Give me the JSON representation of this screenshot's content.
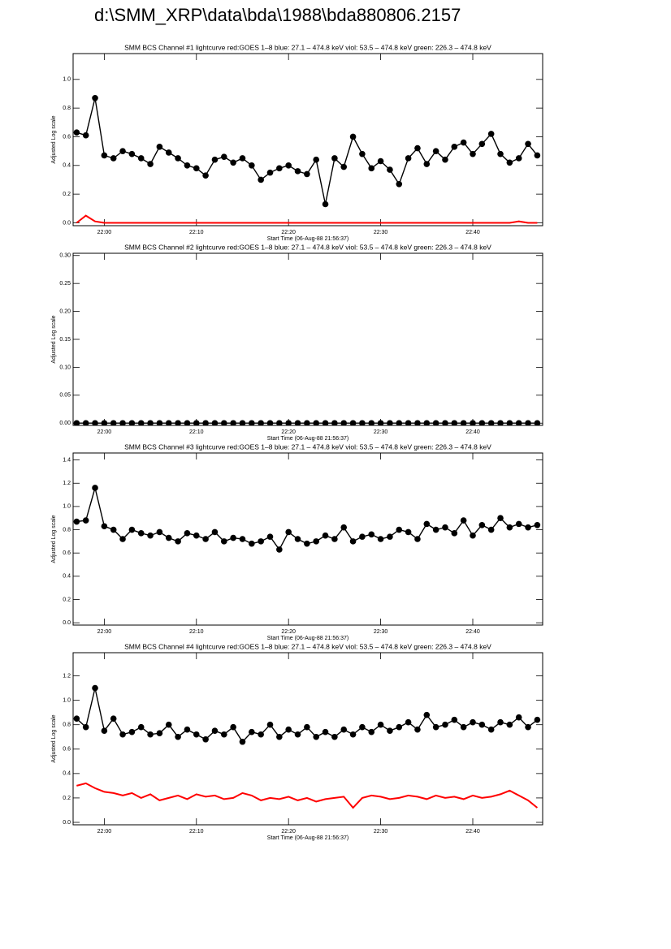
{
  "title": "d:\\SMM_XRP\\data\\bda\\1988\\bda880806.2157",
  "chart_data": [
    {
      "type": "line",
      "title": "SMM BCS Channel #1 lightcurve  red:GOES 1–8  blue: 27.1 – 474.8 keV  viol: 53.5 – 474.8 keV  green: 226.3 – 474.8 keV",
      "xlabel": "Start Time (06-Aug-88 21:56:37)",
      "ylabel": "Adjusted Log scale",
      "x": [
        "21:57",
        "21:58",
        "21:59",
        "22:00",
        "22:01",
        "22:02",
        "22:03",
        "22:04",
        "22:05",
        "22:06",
        "22:07",
        "22:08",
        "22:09",
        "22:10",
        "22:11",
        "22:12",
        "22:13",
        "22:14",
        "22:15",
        "22:16",
        "22:17",
        "22:18",
        "22:19",
        "22:20",
        "22:21",
        "22:22",
        "22:23",
        "22:24",
        "22:25",
        "22:26",
        "22:27",
        "22:28",
        "22:29",
        "22:30",
        "22:31",
        "22:32",
        "22:33",
        "22:34",
        "22:35",
        "22:36",
        "22:37",
        "22:38",
        "22:39",
        "22:40",
        "22:41",
        "22:42",
        "22:43",
        "22:44",
        "22:45",
        "22:46",
        "22:47"
      ],
      "xlim": [
        "21:56:37",
        "22:47:35"
      ],
      "xticks": [
        "22:00",
        "22:10",
        "22:20",
        "22:30",
        "22:40"
      ],
      "ylim": [
        -0.02,
        1.18
      ],
      "yticks": [
        {
          "value": 0,
          "label": "0.0"
        },
        0.2,
        0.4,
        0.6,
        0.8,
        {
          "value": 1,
          "label": "1.0"
        }
      ],
      "series": [
        {
          "color": "#ff0000",
          "marker": "none",
          "values": [
            0,
            0.05,
            0.01,
            0,
            0,
            0,
            0,
            0,
            0,
            0,
            0,
            0,
            0,
            0,
            0,
            0,
            0,
            0,
            0,
            0,
            0,
            0,
            0,
            0,
            0,
            0,
            0,
            0,
            0,
            0,
            0,
            0,
            0,
            0,
            0,
            0,
            0,
            0,
            0,
            0,
            0,
            0,
            0,
            0,
            0,
            0,
            0,
            0,
            0.01,
            0,
            0
          ]
        },
        {
          "color": "#000000",
          "marker": "circle",
          "values": [
            0.63,
            0.61,
            0.87,
            0.47,
            0.45,
            0.5,
            0.48,
            0.45,
            0.41,
            0.53,
            0.49,
            0.45,
            0.4,
            0.38,
            0.33,
            0.44,
            0.46,
            0.42,
            0.45,
            0.4,
            0.3,
            0.35,
            0.38,
            0.4,
            0.36,
            0.34,
            0.44,
            0.13,
            0.45,
            0.39,
            0.6,
            0.48,
            0.38,
            0.43,
            0.37,
            0.27,
            0.45,
            0.52,
            0.41,
            0.5,
            0.44,
            0.53,
            0.56,
            0.48,
            0.55,
            0.62,
            0.48,
            0.42,
            0.45,
            0.55,
            0.47
          ]
        }
      ]
    },
    {
      "type": "line",
      "title": "SMM BCS Channel #2 lightcurve  red:GOES 1–8  blue: 27.1 – 474.8 keV  viol: 53.5 – 474.8 keV  green: 226.3 – 474.8 keV",
      "xlabel": "Start Time (06-Aug-88 21:56:37)",
      "ylabel": "Adjusted Log scale",
      "x": [
        "21:57",
        "21:58",
        "21:59",
        "22:00",
        "22:01",
        "22:02",
        "22:03",
        "22:04",
        "22:05",
        "22:06",
        "22:07",
        "22:08",
        "22:09",
        "22:10",
        "22:11",
        "22:12",
        "22:13",
        "22:14",
        "22:15",
        "22:16",
        "22:17",
        "22:18",
        "22:19",
        "22:20",
        "22:21",
        "22:22",
        "22:23",
        "22:24",
        "22:25",
        "22:26",
        "22:27",
        "22:28",
        "22:29",
        "22:30",
        "22:31",
        "22:32",
        "22:33",
        "22:34",
        "22:35",
        "22:36",
        "22:37",
        "22:38",
        "22:39",
        "22:40",
        "22:41",
        "22:42",
        "22:43",
        "22:44",
        "22:45",
        "22:46",
        "22:47"
      ],
      "xlim": [
        "21:56:37",
        "22:47:35"
      ],
      "xticks": [
        "22:00",
        "22:10",
        "22:20",
        "22:30",
        "22:40"
      ],
      "ylim": [
        -0.004,
        0.304
      ],
      "yticks": [
        {
          "value": 0,
          "label": "0.00"
        },
        0.05,
        {
          "value": 0.1,
          "label": "0.10"
        },
        0.15,
        {
          "value": 0.2,
          "label": "0.20"
        },
        0.25,
        {
          "value": 0.3,
          "label": "0.30"
        }
      ],
      "series": [
        {
          "color": "#000000",
          "marker": "circle",
          "values": [
            0,
            0,
            0,
            0,
            0,
            0,
            0,
            0,
            0,
            0,
            0,
            0,
            0,
            0,
            0,
            0,
            0,
            0,
            0,
            0,
            0,
            0,
            0,
            0,
            0,
            0,
            0,
            0,
            0,
            0,
            0,
            0,
            0,
            0,
            0,
            0,
            0,
            0,
            0,
            0,
            0,
            0,
            0,
            0,
            0,
            0,
            0,
            0,
            0,
            0,
            0
          ]
        }
      ]
    },
    {
      "type": "line",
      "title": "SMM BCS Channel #3 lightcurve  red:GOES 1–8  blue: 27.1 – 474.8 keV  viol: 53.5 – 474.8 keV  green: 226.3 – 474.8 keV",
      "xlabel": "Start Time (06-Aug-88 21:56:37)",
      "ylabel": "Adjusted Log scale",
      "x": [
        "21:57",
        "21:58",
        "21:59",
        "22:00",
        "22:01",
        "22:02",
        "22:03",
        "22:04",
        "22:05",
        "22:06",
        "22:07",
        "22:08",
        "22:09",
        "22:10",
        "22:11",
        "22:12",
        "22:13",
        "22:14",
        "22:15",
        "22:16",
        "22:17",
        "22:18",
        "22:19",
        "22:20",
        "22:21",
        "22:22",
        "22:23",
        "22:24",
        "22:25",
        "22:26",
        "22:27",
        "22:28",
        "22:29",
        "22:30",
        "22:31",
        "22:32",
        "22:33",
        "22:34",
        "22:35",
        "22:36",
        "22:37",
        "22:38",
        "22:39",
        "22:40",
        "22:41",
        "22:42",
        "22:43",
        "22:44",
        "22:45",
        "22:46",
        "22:47"
      ],
      "xlim": [
        "21:56:37",
        "22:47:35"
      ],
      "xticks": [
        "22:00",
        "22:10",
        "22:20",
        "22:30",
        "22:40"
      ],
      "ylim": [
        -0.02,
        1.46
      ],
      "yticks": [
        {
          "value": 0,
          "label": "0.0"
        },
        0.2,
        0.4,
        0.6,
        0.8,
        {
          "value": 1,
          "label": "1.0"
        },
        1.2,
        1.4
      ],
      "series": [
        {
          "color": "#000000",
          "marker": "circle",
          "values": [
            0.87,
            0.88,
            1.16,
            0.83,
            0.8,
            0.72,
            0.8,
            0.77,
            0.75,
            0.78,
            0.73,
            0.7,
            0.77,
            0.75,
            0.72,
            0.78,
            0.7,
            0.73,
            0.72,
            0.68,
            0.7,
            0.74,
            0.63,
            0.78,
            0.72,
            0.68,
            0.7,
            0.75,
            0.72,
            0.82,
            0.7,
            0.74,
            0.76,
            0.72,
            0.74,
            0.8,
            0.78,
            0.72,
            0.85,
            0.8,
            0.82,
            0.77,
            0.88,
            0.75,
            0.84,
            0.8,
            0.9,
            0.82,
            0.85,
            0.82,
            0.84
          ]
        }
      ]
    },
    {
      "type": "line",
      "title": "SMM BCS Channel #4 lightcurve  red:GOES 1–8  blue: 27.1 – 474.8 keV  viol: 53.5 – 474.8 keV  green: 226.3 – 474.8 keV",
      "xlabel": "Start Time (06-Aug-88 21:56:37)",
      "ylabel": "Adjusted Log scale",
      "x": [
        "21:57",
        "21:58",
        "21:59",
        "22:00",
        "22:01",
        "22:02",
        "22:03",
        "22:04",
        "22:05",
        "22:06",
        "22:07",
        "22:08",
        "22:09",
        "22:10",
        "22:11",
        "22:12",
        "22:13",
        "22:14",
        "22:15",
        "22:16",
        "22:17",
        "22:18",
        "22:19",
        "22:20",
        "22:21",
        "22:22",
        "22:23",
        "22:24",
        "22:25",
        "22:26",
        "22:27",
        "22:28",
        "22:29",
        "22:30",
        "22:31",
        "22:32",
        "22:33",
        "22:34",
        "22:35",
        "22:36",
        "22:37",
        "22:38",
        "22:39",
        "22:40",
        "22:41",
        "22:42",
        "22:43",
        "22:44",
        "22:45",
        "22:46",
        "22:47"
      ],
      "xlim": [
        "21:56:37",
        "22:47:35"
      ],
      "xticks": [
        "22:00",
        "22:10",
        "22:20",
        "22:30",
        "22:40"
      ],
      "ylim": [
        -0.02,
        1.39
      ],
      "yticks": [
        {
          "value": 0,
          "label": "0.0"
        },
        0.2,
        0.4,
        0.6,
        0.8,
        {
          "value": 1,
          "label": "1.0"
        },
        1.2
      ],
      "series": [
        {
          "color": "#ff0000",
          "marker": "none",
          "values": [
            0.3,
            0.32,
            0.28,
            0.25,
            0.24,
            0.22,
            0.24,
            0.2,
            0.23,
            0.18,
            0.2,
            0.22,
            0.19,
            0.23,
            0.21,
            0.22,
            0.19,
            0.2,
            0.24,
            0.22,
            0.18,
            0.2,
            0.19,
            0.21,
            0.18,
            0.2,
            0.17,
            0.19,
            0.2,
            0.21,
            0.12,
            0.2,
            0.22,
            0.21,
            0.19,
            0.2,
            0.22,
            0.21,
            0.19,
            0.22,
            0.2,
            0.21,
            0.19,
            0.22,
            0.2,
            0.21,
            0.23,
            0.26,
            0.22,
            0.18,
            0.12
          ]
        },
        {
          "color": "#000000",
          "marker": "circle",
          "values": [
            0.85,
            0.78,
            1.1,
            0.75,
            0.85,
            0.72,
            0.74,
            0.78,
            0.72,
            0.73,
            0.8,
            0.7,
            0.76,
            0.72,
            0.68,
            0.75,
            0.72,
            0.78,
            0.66,
            0.74,
            0.72,
            0.8,
            0.7,
            0.76,
            0.72,
            0.78,
            0.7,
            0.74,
            0.7,
            0.76,
            0.72,
            0.78,
            0.74,
            0.8,
            0.75,
            0.78,
            0.82,
            0.76,
            0.88,
            0.78,
            0.8,
            0.84,
            0.78,
            0.82,
            0.8,
            0.76,
            0.82,
            0.8,
            0.86,
            0.78,
            0.84
          ]
        }
      ]
    }
  ]
}
